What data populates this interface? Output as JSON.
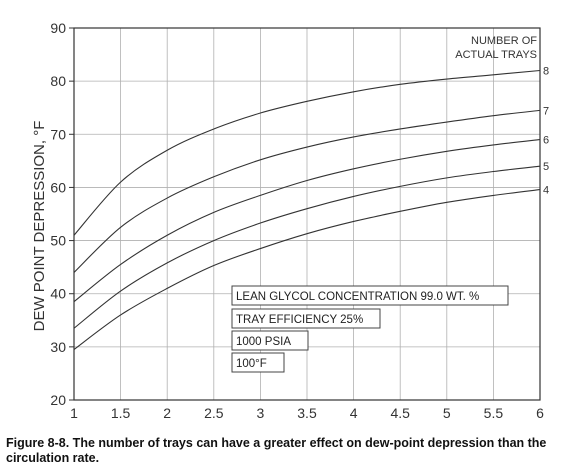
{
  "chart_data": {
    "type": "line",
    "ylabel": "DEW POINT DEPRESSION, °F",
    "xlabel": "",
    "xlim": [
      1,
      6
    ],
    "ylim": [
      20,
      90
    ],
    "xticks": [
      "1",
      "1.5",
      "2",
      "2.5",
      "3",
      "3.5",
      "4",
      "4.5",
      "5",
      "5.5",
      "6"
    ],
    "yticks": [
      "20",
      "30",
      "40",
      "50",
      "60",
      "70",
      "80",
      "90"
    ],
    "grid": true,
    "legend_title": [
      "NUMBER OF",
      "ACTUAL TRAYS"
    ],
    "x": [
      1,
      1.5,
      2,
      2.5,
      3,
      3.5,
      4,
      4.5,
      5,
      5.5,
      6
    ],
    "series": [
      {
        "name": "8",
        "values": [
          51,
          61,
          67,
          71,
          74,
          76.2,
          78,
          79.4,
          80.4,
          81.2,
          82
        ]
      },
      {
        "name": "7",
        "values": [
          44,
          52.5,
          58,
          62,
          65.2,
          67.6,
          69.5,
          71,
          72.3,
          73.5,
          74.5
        ]
      },
      {
        "name": "6",
        "values": [
          38.5,
          45.5,
          51,
          55.3,
          58.5,
          61.3,
          63.5,
          65.3,
          66.8,
          68,
          69
        ]
      },
      {
        "name": "5",
        "values": [
          33.5,
          40.5,
          45.8,
          50,
          53.3,
          56,
          58.3,
          60.2,
          61.8,
          63,
          64
        ]
      },
      {
        "name": "4",
        "values": [
          29.5,
          36,
          41,
          45.3,
          48.5,
          51.3,
          53.6,
          55.5,
          57.2,
          58.5,
          59.6
        ]
      }
    ]
  },
  "notes": [
    "LEAN GLYCOL CONCENTRATION 99.0 WT. %",
    "TRAY EFFICIENCY 25%",
    "1000 PSIA",
    "100°F"
  ],
  "caption": "Figure 8-8. The number of trays can have a greater effect on dew-point depression than the circulation rate.",
  "colors": {
    "line": "#333333",
    "grid": "#b0b0b0",
    "axis": "#333333"
  }
}
